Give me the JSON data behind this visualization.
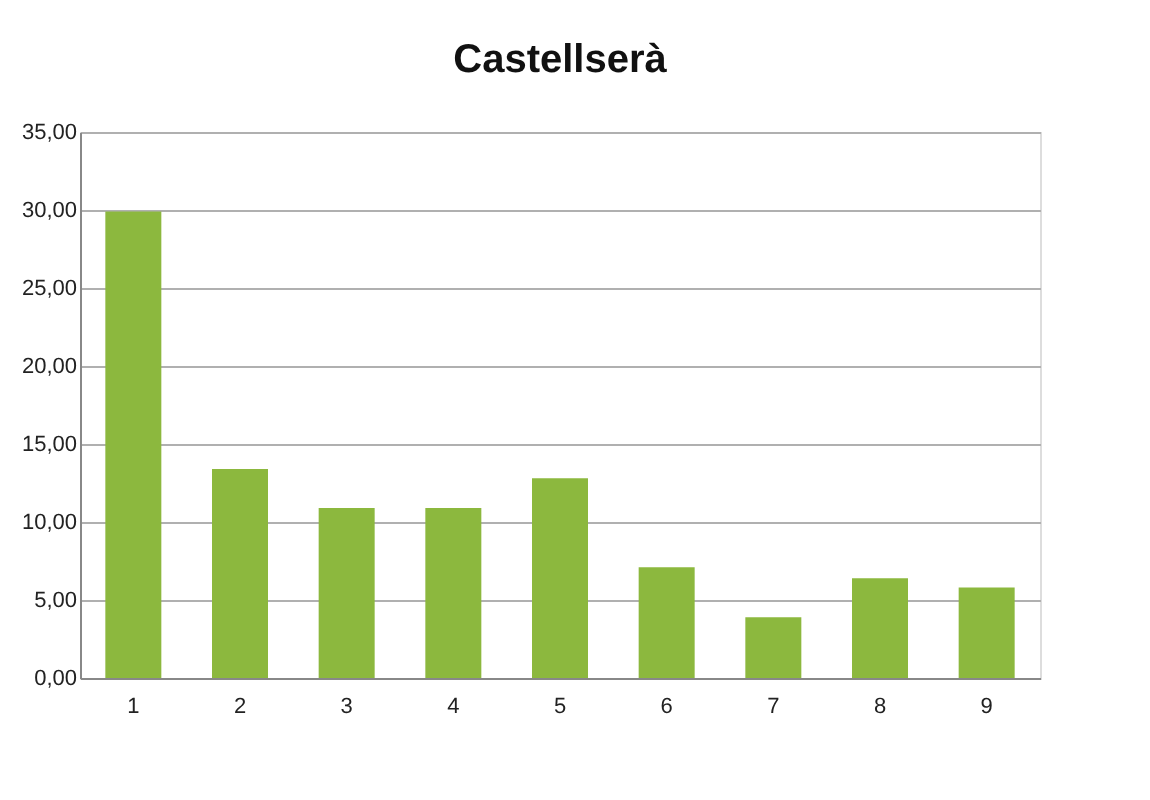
{
  "chart_data": {
    "type": "bar",
    "title": "Castellserà",
    "categories": [
      "1",
      "2",
      "3",
      "4",
      "5",
      "6",
      "7",
      "8",
      "9"
    ],
    "values": [
      29.9,
      13.4,
      10.9,
      10.9,
      12.8,
      7.1,
      3.9,
      6.4,
      5.8
    ],
    "color": "#8cb83e",
    "ylim": [
      0,
      35
    ],
    "yticks": [
      {
        "value": 0,
        "label": "0,00"
      },
      {
        "value": 5,
        "label": "5,00"
      },
      {
        "value": 10,
        "label": "10,00"
      },
      {
        "value": 15,
        "label": "15,00"
      },
      {
        "value": 20,
        "label": "20,00"
      },
      {
        "value": 25,
        "label": "25,00"
      },
      {
        "value": 30,
        "label": "30,00"
      },
      {
        "value": 35,
        "label": "35,00"
      }
    ],
    "grid": "y"
  }
}
